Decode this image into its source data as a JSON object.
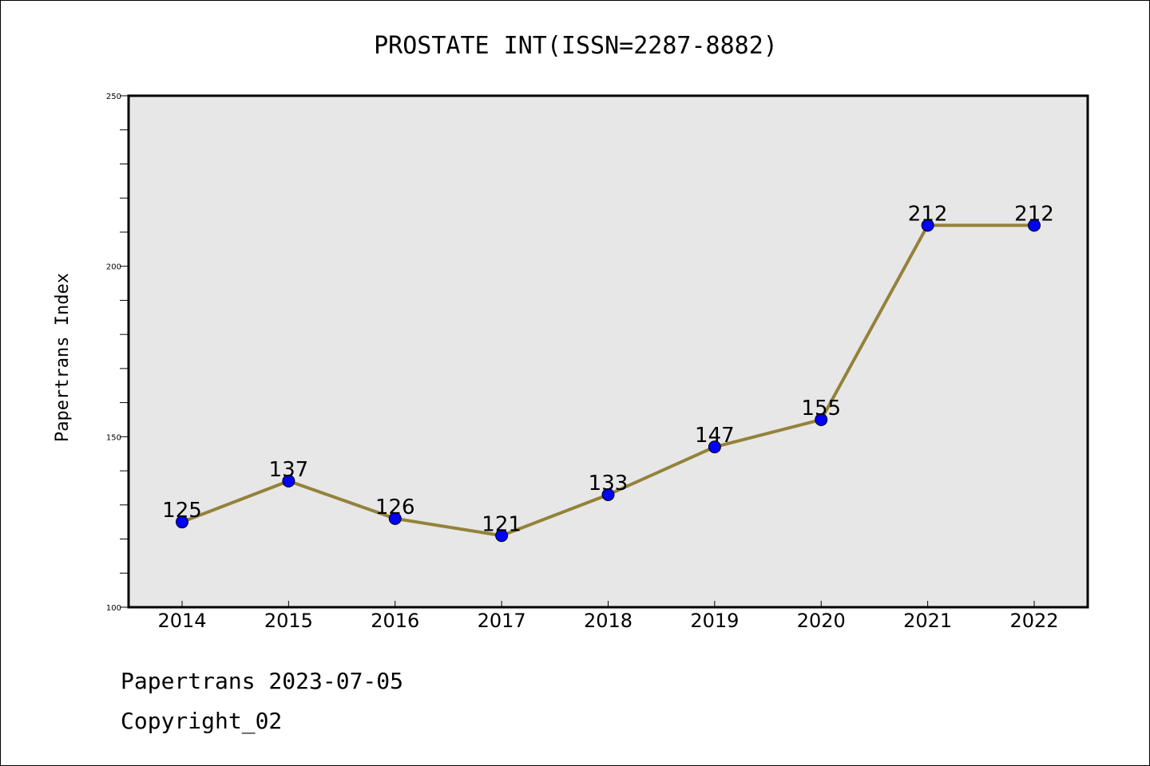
{
  "chart_data": {
    "type": "line",
    "title": "PROSTATE INT(ISSN=2287-8882)",
    "xlabel": "",
    "ylabel": "Papertrans Index",
    "categories": [
      "2014",
      "2015",
      "2016",
      "2017",
      "2018",
      "2019",
      "2020",
      "2021",
      "2022"
    ],
    "series": [
      {
        "values": [
          125,
          137,
          126,
          121,
          133,
          147,
          155,
          212,
          212
        ]
      }
    ],
    "ylim": [
      100,
      250
    ],
    "yticks": [
      100,
      150,
      200,
      250
    ],
    "grid": false,
    "data_labels": true,
    "colors": {
      "line": "#94823a",
      "marker": "#0000ff",
      "plot_background": "#e7e7e7"
    }
  },
  "footer": {
    "date_text": "Papertrans 2023-07-05",
    "copyright_text": "Copyright_02"
  }
}
